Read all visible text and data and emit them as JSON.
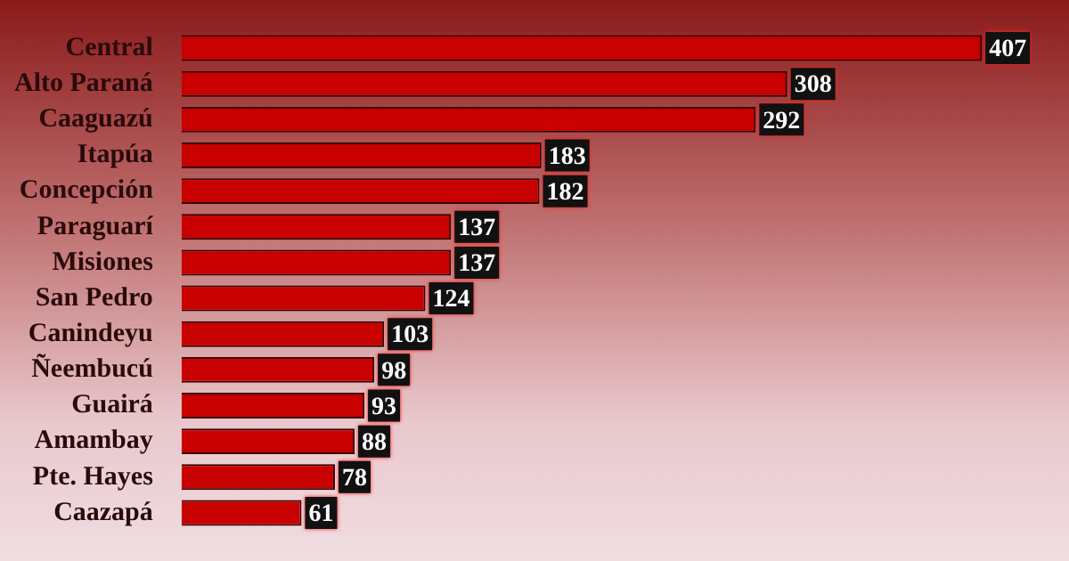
{
  "chart_data": {
    "type": "bar",
    "orientation": "horizontal",
    "categories": [
      "Central",
      "Alto Paraná",
      "Caaguazú",
      "Itapúa",
      "Concepción",
      "Paraguarí",
      "Misiones",
      "San Pedro",
      "Canindeyu",
      "Ñeembucú",
      "Guairá",
      "Amambay",
      "Pte. Hayes",
      "Caazapá"
    ],
    "values": [
      407,
      308,
      292,
      183,
      182,
      137,
      137,
      124,
      103,
      98,
      93,
      88,
      78,
      61
    ],
    "color": "#c80000",
    "data_labels": true,
    "legend": false
  }
}
